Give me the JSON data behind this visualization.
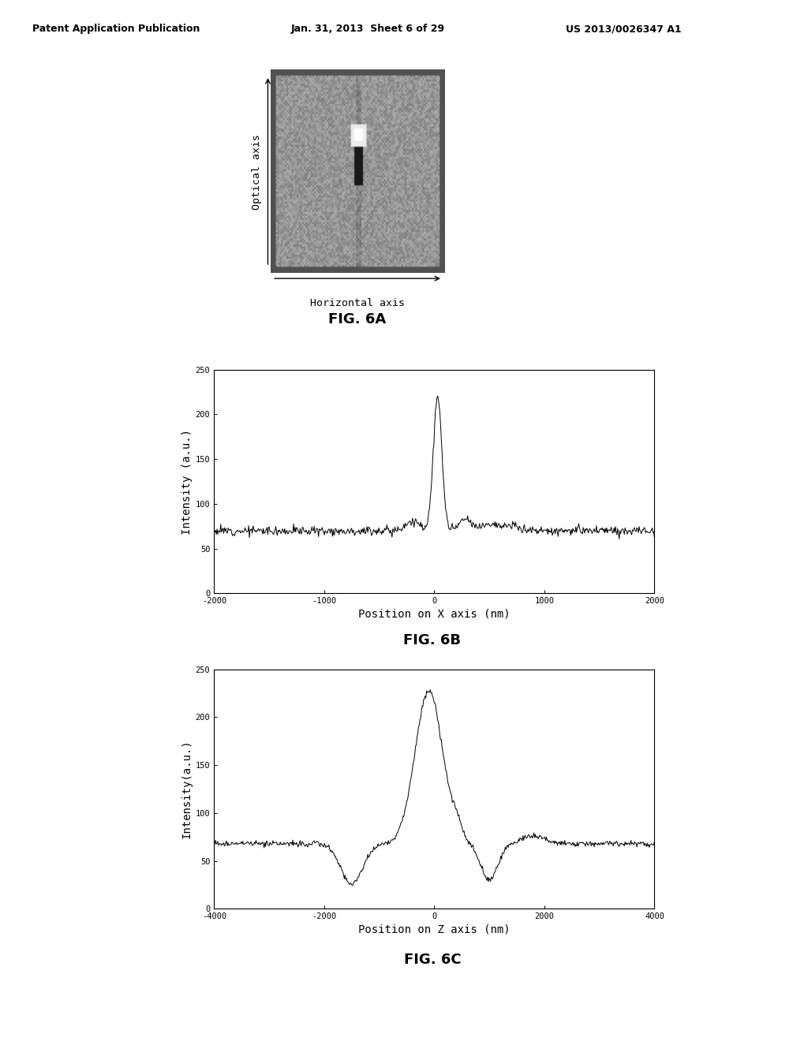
{
  "page_title_left": "Patent Application Publication",
  "page_title_mid": "Jan. 31, 2013  Sheet 6 of 29",
  "page_title_right": "US 2013/0026347 A1",
  "fig6a_label": "FIG. 6A",
  "fig6b_label": "FIG. 6B",
  "fig6c_label": "FIG. 6C",
  "fig6a_xlabel": "Horizontal axis",
  "fig6a_ylabel": "Optical axis",
  "fig6b_xlabel": "Position on X axis (nm)",
  "fig6b_ylabel": "Intensity (a.u.)",
  "fig6c_xlabel": "Position on Z axis (nm)",
  "fig6c_ylabel": "Intensity(a.u.)",
  "fig6b_xlim": [
    -2000,
    2000
  ],
  "fig6b_ylim": [
    0,
    250
  ],
  "fig6b_xticks": [
    -2000,
    -1000,
    0,
    1000,
    2000
  ],
  "fig6b_yticks": [
    0,
    50,
    100,
    150,
    200,
    250
  ],
  "fig6c_xlim": [
    -4000,
    4000
  ],
  "fig6c_ylim": [
    0,
    250
  ],
  "fig6c_xticks": [
    -4000,
    -2000,
    0,
    2000,
    4000
  ],
  "fig6c_yticks": [
    0,
    50,
    100,
    150,
    200,
    250
  ],
  "bg_color": "#ffffff",
  "outer_bg": "#c8c8c8",
  "plot_bg_color": "#ffffff",
  "line_color": "#000000",
  "font_family": "monospace"
}
